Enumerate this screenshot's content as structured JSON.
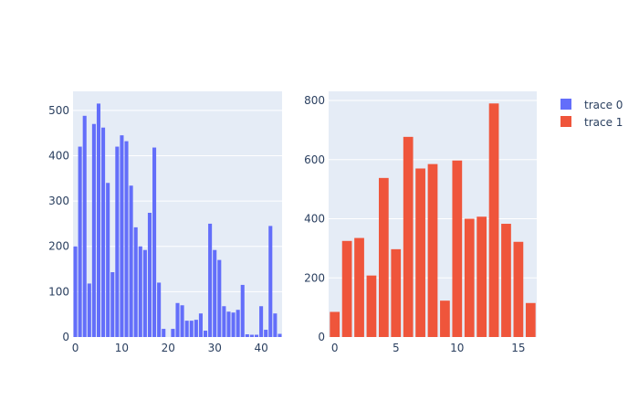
{
  "chart_data": [
    {
      "type": "bar",
      "title": "",
      "xlabel": "",
      "ylabel": "",
      "series_name": "trace 0",
      "color": "#636efa",
      "x": [
        0,
        1,
        2,
        3,
        4,
        5,
        6,
        7,
        8,
        9,
        10,
        11,
        12,
        13,
        14,
        15,
        16,
        17,
        18,
        19,
        20,
        21,
        22,
        23,
        24,
        25,
        26,
        27,
        28,
        29,
        30,
        31,
        32,
        33,
        34,
        35,
        36,
        37,
        38,
        39,
        40,
        41,
        42,
        43,
        44
      ],
      "values": [
        200,
        420,
        488,
        118,
        470,
        515,
        462,
        340,
        143,
        420,
        445,
        432,
        334,
        242,
        200,
        192,
        274,
        418,
        120,
        18,
        0,
        18,
        75,
        70,
        36,
        36,
        38,
        52,
        14,
        250,
        192,
        170,
        68,
        56,
        54,
        60,
        115,
        6,
        5,
        5,
        68,
        16,
        245,
        52,
        7
      ],
      "xlim": [
        -0.5,
        44.5
      ],
      "ylim": [
        0,
        542
      ],
      "xticks": [
        0,
        10,
        20,
        30,
        40
      ],
      "yticks": [
        0,
        100,
        200,
        300,
        400,
        500
      ],
      "grid": true
    },
    {
      "type": "bar",
      "title": "",
      "xlabel": "",
      "ylabel": "",
      "series_name": "trace 1",
      "color": "#ef553b",
      "x": [
        0,
        1,
        2,
        3,
        4,
        5,
        6,
        7,
        8,
        9,
        10,
        11,
        12,
        13,
        14,
        15,
        16
      ],
      "values": [
        85,
        325,
        335,
        208,
        538,
        297,
        677,
        570,
        585,
        123,
        597,
        400,
        407,
        790,
        383,
        322,
        115
      ],
      "xlim": [
        -0.5,
        16.5
      ],
      "ylim": [
        0,
        831
      ],
      "xticks": [
        0,
        5,
        10,
        15
      ],
      "yticks": [
        0,
        200,
        400,
        600,
        800
      ],
      "grid": true
    }
  ],
  "legend": {
    "position": "top-right",
    "items": [
      {
        "label": "trace 0",
        "color": "#636efa"
      },
      {
        "label": "trace 1",
        "color": "#ef553b"
      }
    ]
  },
  "style": {
    "plot_bg": "#e5ecf6",
    "grid_color": "#ffffff",
    "tick_color": "#2a3f5f"
  }
}
